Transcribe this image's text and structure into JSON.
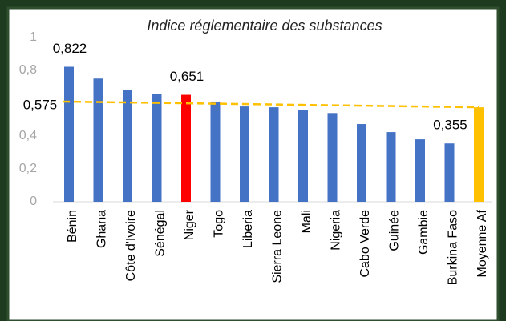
{
  "chart_data": {
    "type": "bar",
    "title": "Indice réglementaire des substances",
    "categories": [
      "Bénin",
      "Ghana",
      "Côte d'Ivoire",
      "Sénégal",
      "Niger",
      "Togo",
      "Liberia",
      "Sierra Leone",
      "Mali",
      "Nigeria",
      "Cabo Verde",
      "Guinée",
      "Gambie",
      "Burkina Faso",
      "Moyenne Af"
    ],
    "values": [
      0.822,
      0.75,
      0.68,
      0.655,
      0.651,
      0.61,
      0.58,
      0.575,
      0.556,
      0.54,
      0.473,
      0.424,
      0.38,
      0.355,
      0.575
    ],
    "value_labels": [
      "0,822",
      null,
      null,
      null,
      "0,651",
      null,
      null,
      null,
      null,
      null,
      null,
      null,
      null,
      "0,355",
      null
    ],
    "colors": [
      "#4472c4",
      "#4472c4",
      "#4472c4",
      "#4472c4",
      "#ff0000",
      "#4472c4",
      "#4472c4",
      "#4472c4",
      "#4472c4",
      "#4472c4",
      "#4472c4",
      "#4472c4",
      "#4472c4",
      "#4472c4",
      "#ffc000"
    ],
    "trend": {
      "values": [
        0.61,
        0.575
      ],
      "color": "#ffc000",
      "label": "0,575"
    },
    "ylim": [
      0,
      1
    ],
    "yticks": [
      0,
      {
        "value": 0.2,
        "label": "0,2"
      },
      {
        "value": 0.4,
        "label": "0,4"
      },
      {
        "value": 0.8,
        "label": "0,8"
      },
      1
    ],
    "grid": false
  }
}
